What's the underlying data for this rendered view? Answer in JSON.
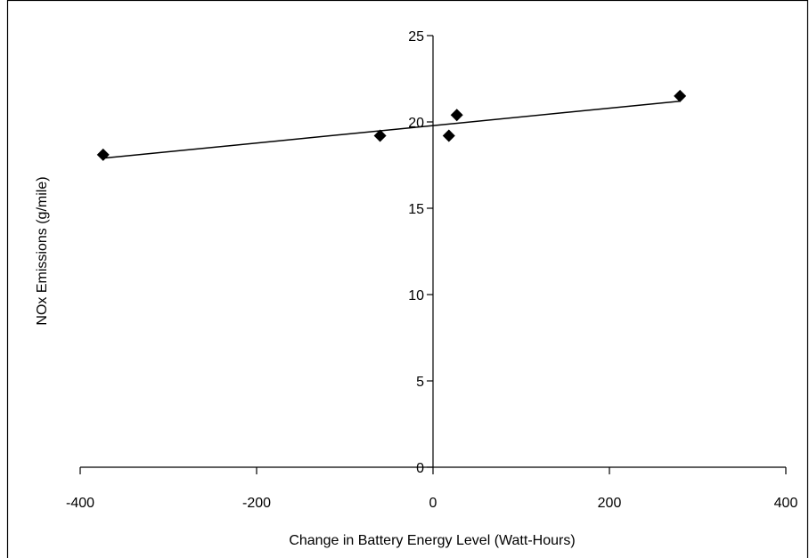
{
  "chart_data": {
    "type": "scatter",
    "title": "",
    "xlabel": "Change in Battery Energy Level (Watt-Hours)",
    "ylabel": "NOx Emissions (g/mile)",
    "xlim": [
      -400,
      400
    ],
    "ylim": [
      0,
      25
    ],
    "x_ticks": [
      -400,
      -200,
      0,
      200,
      400
    ],
    "y_ticks": [
      0,
      5,
      10,
      15,
      20,
      25
    ],
    "grid": false,
    "legend": "none",
    "marker": "diamond",
    "marker_color": "#000000",
    "points": [
      {
        "x": -374,
        "y": 18.1
      },
      {
        "x": -60,
        "y": 19.2
      },
      {
        "x": 18,
        "y": 19.2
      },
      {
        "x": 27,
        "y": 20.4
      },
      {
        "x": 280,
        "y": 21.5
      }
    ],
    "trendline": {
      "type": "linear",
      "x": [
        -374,
        280
      ],
      "y": [
        17.9,
        21.2
      ]
    }
  }
}
